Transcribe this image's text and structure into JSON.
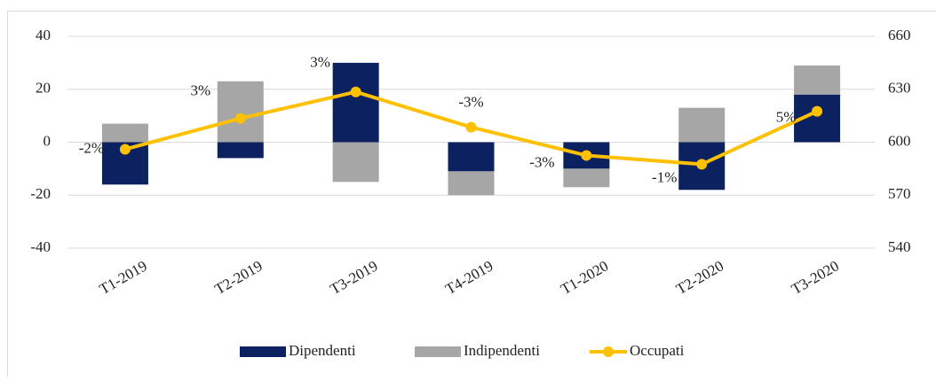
{
  "chart_data": {
    "type": "bar-line",
    "categories": [
      "T1-2019",
      "T2-2019",
      "T3-2019",
      "T4-2019",
      "T1-2020",
      "T2-2020",
      "T3-2020"
    ],
    "series": [
      {
        "name": "Dipendenti",
        "type": "bar",
        "color": "#0c2260",
        "values": [
          -16,
          -6,
          30,
          -11,
          -10,
          -18,
          18
        ]
      },
      {
        "name": "Indipendenti",
        "type": "bar",
        "color": "#a6a6a6",
        "values": [
          7,
          23,
          -15,
          -9,
          -7,
          13,
          11
        ]
      },
      {
        "name": "Occupati",
        "type": "line",
        "axis": "y2",
        "color": "#ffc000",
        "values": [
          596,
          613.5,
          628.5,
          608.5,
          592.5,
          587.5,
          617.5
        ],
        "point_labels": [
          "-2%",
          "3%",
          "3%",
          "-3%",
          "-3%",
          "-1%",
          "5%"
        ]
      }
    ],
    "ylim": [
      -40,
      40
    ],
    "yticks": [
      -40,
      -20,
      0,
      20,
      40
    ],
    "y2lim": [
      540,
      660
    ],
    "y2ticks": [
      540,
      570,
      600,
      630,
      660
    ],
    "grid": true,
    "legend": "bottom"
  }
}
